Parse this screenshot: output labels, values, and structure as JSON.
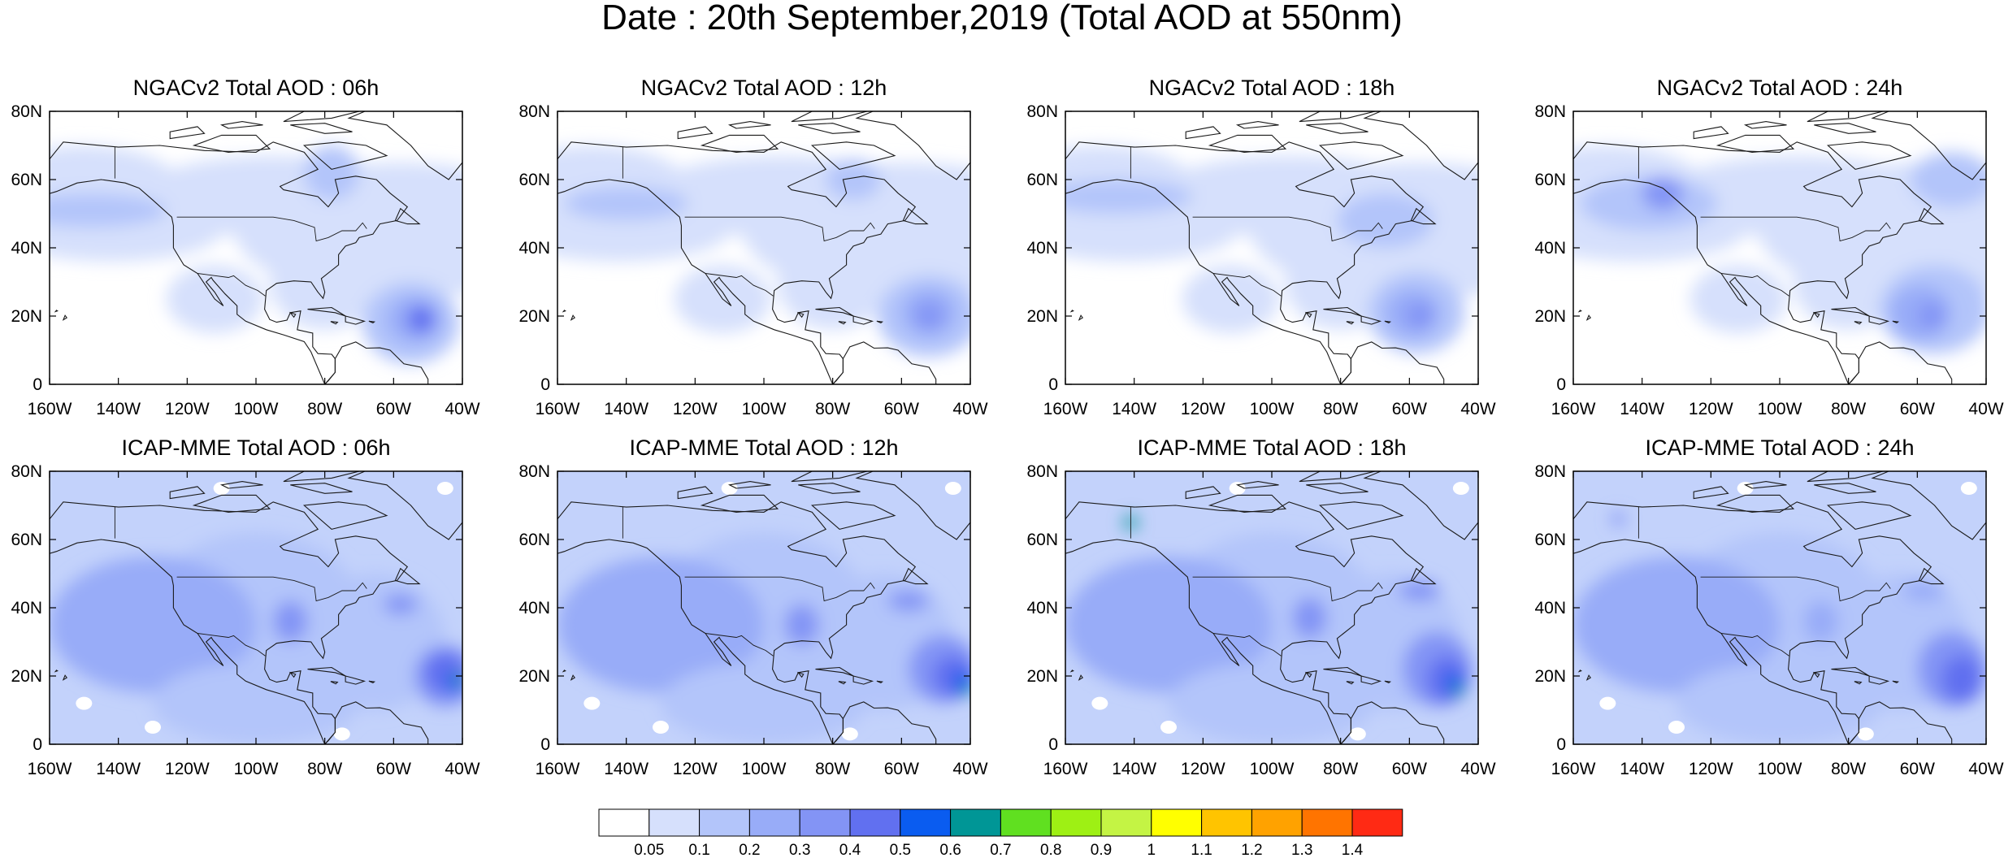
{
  "title": "Date : 20th September,2019 (Total AOD at 550nm)",
  "panels": [
    {
      "title": "NGACv2 Total AOD : 06h",
      "model": "NGACv2",
      "hour": "06h"
    },
    {
      "title": "NGACv2 Total AOD : 12h",
      "model": "NGACv2",
      "hour": "12h"
    },
    {
      "title": "NGACv2 Total AOD : 18h",
      "model": "NGACv2",
      "hour": "18h"
    },
    {
      "title": "NGACv2 Total AOD : 24h",
      "model": "NGACv2",
      "hour": "24h"
    },
    {
      "title": "ICAP-MME Total AOD : 06h",
      "model": "ICAP-MME",
      "hour": "06h"
    },
    {
      "title": "ICAP-MME Total AOD : 12h",
      "model": "ICAP-MME",
      "hour": "12h"
    },
    {
      "title": "ICAP-MME Total AOD : 18h",
      "model": "ICAP-MME",
      "hour": "18h"
    },
    {
      "title": "ICAP-MME Total AOD : 24h",
      "model": "ICAP-MME",
      "hour": "24h"
    }
  ],
  "axes": {
    "lon_ticks": [
      "160W",
      "140W",
      "120W",
      "100W",
      "80W",
      "60W",
      "40W"
    ],
    "lat_ticks": [
      "0",
      "20N",
      "40N",
      "60N",
      "80N"
    ],
    "lon_range": [
      -160,
      -40
    ],
    "lat_range": [
      0,
      80
    ]
  },
  "colorbar": {
    "labels": [
      "0.05",
      "0.1",
      "0.2",
      "0.3",
      "0.4",
      "0.5",
      "0.6",
      "0.7",
      "0.8",
      "0.9",
      "1",
      "1.1",
      "1.2",
      "1.3",
      "1.4"
    ],
    "colors": [
      "#ffffff",
      "#d6e0fc",
      "#b3c5fa",
      "#98acf8",
      "#8394f5",
      "#6170f0",
      "#0a5cf0",
      "#009696",
      "#60e020",
      "#9ef014",
      "#c4f444",
      "#ffff00",
      "#ffc400",
      "#ffa200",
      "#ff7400",
      "#ff2a14"
    ]
  }
}
